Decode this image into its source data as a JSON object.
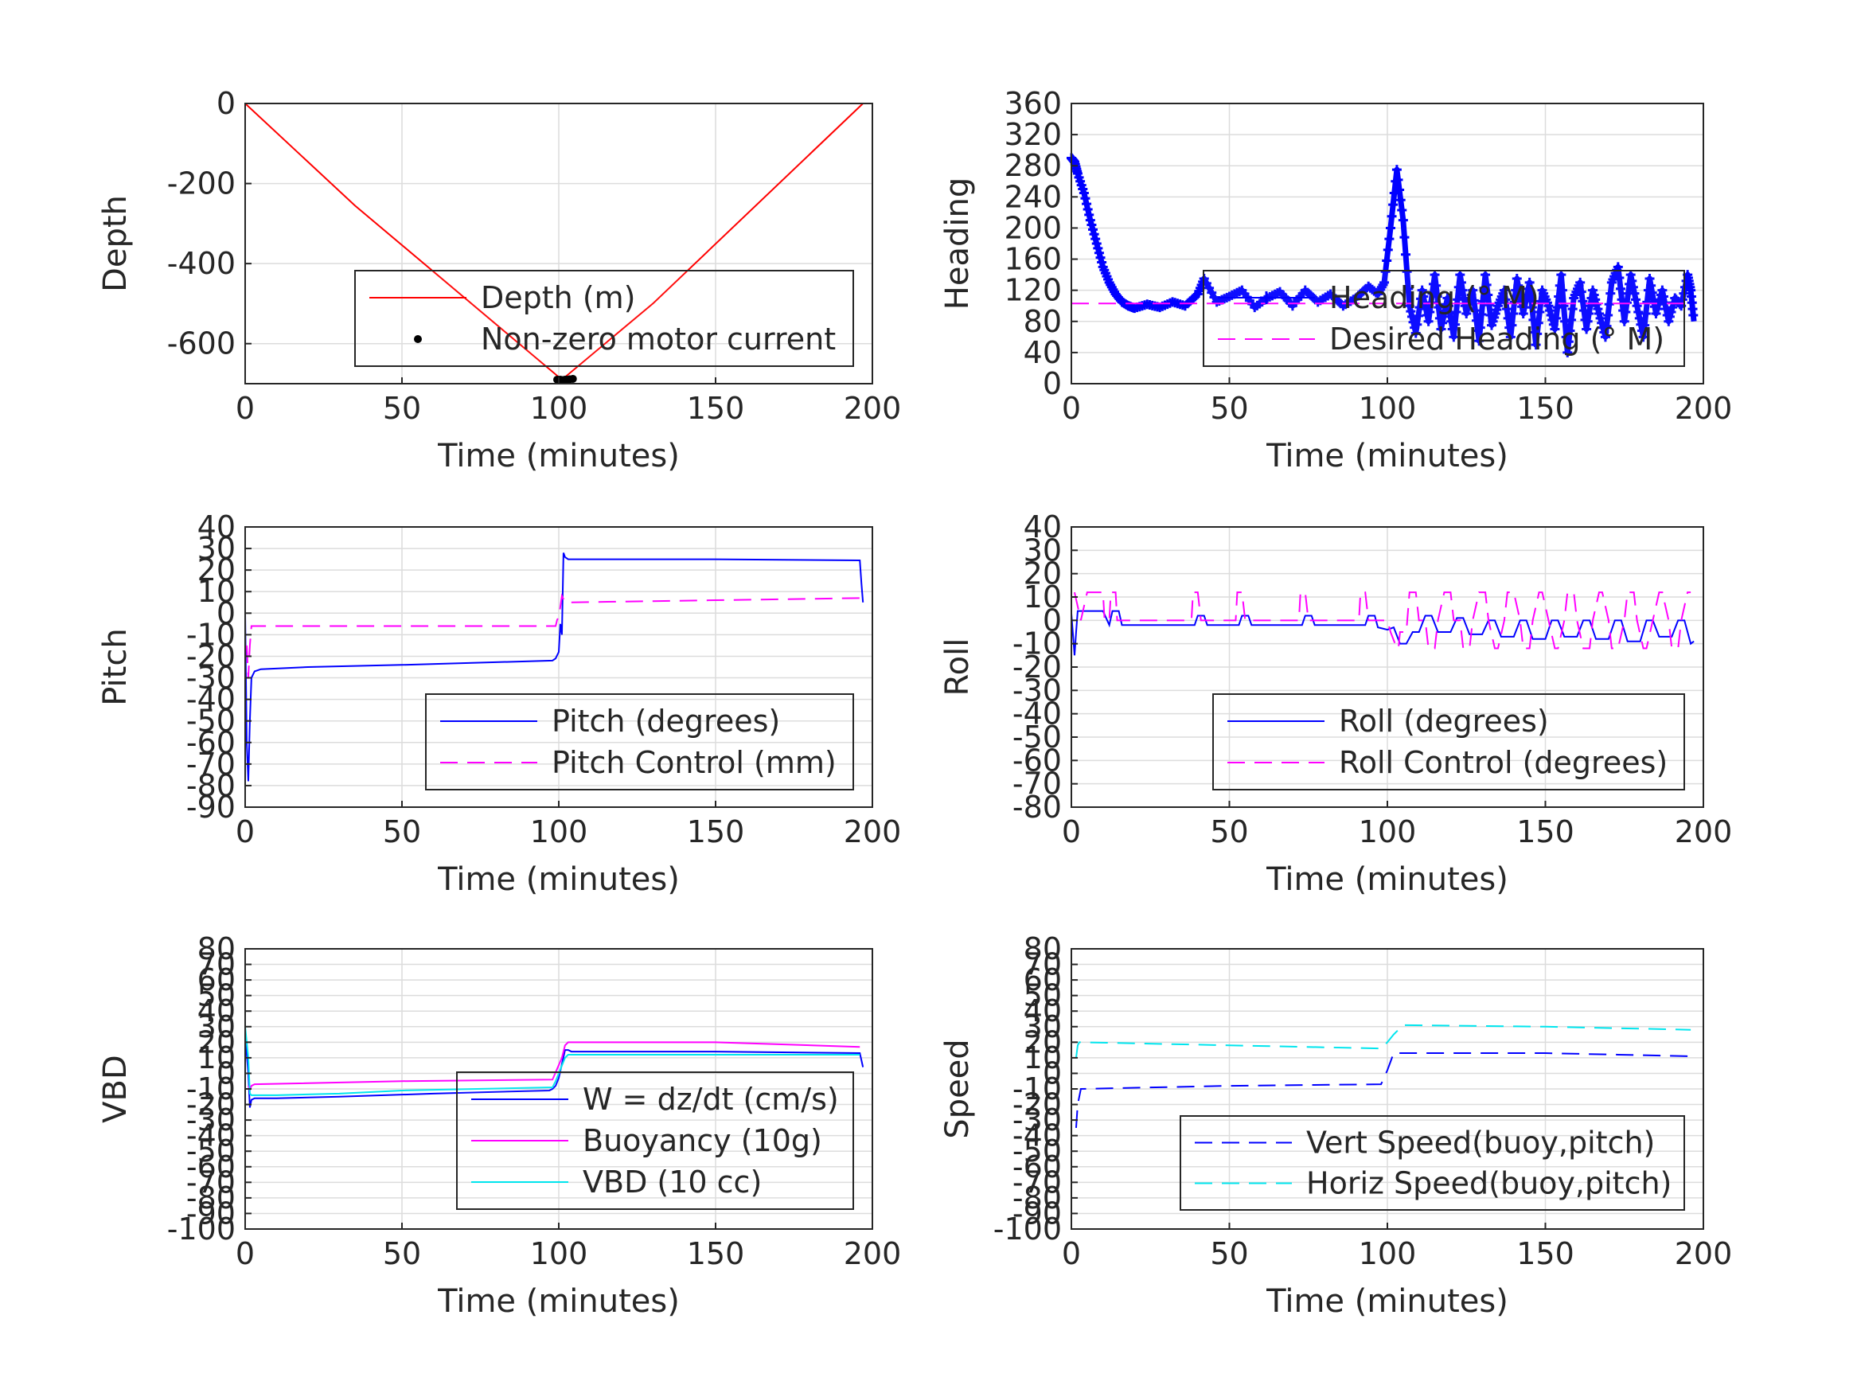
{
  "chart_data": [
    {
      "type": "line",
      "xlabel": "Time (minutes)",
      "ylabel": "Depth",
      "xlim": [
        0,
        200
      ],
      "ylim": [
        -700,
        0
      ],
      "xticks": [
        0,
        50,
        100,
        150,
        200
      ],
      "yticks": [
        0,
        -200,
        -400,
        -600
      ],
      "grid": true,
      "legend_position": "lower-right",
      "series": [
        {
          "name": "Depth (m)",
          "color": "#ff0000",
          "style": "solid",
          "x": [
            0,
            35,
            101,
            130,
            197
          ],
          "y": [
            0,
            -255,
            -690,
            -500,
            0
          ]
        },
        {
          "name": "Non-zero motor current",
          "color": "#000000",
          "style": "dot",
          "x": [
            99.5,
            100.5,
            101,
            101.5,
            102,
            102.5,
            103.5,
            104.5
          ],
          "y": [
            -690,
            -690,
            -691,
            -691,
            -690,
            -690,
            -689,
            -688
          ]
        }
      ]
    },
    {
      "type": "line",
      "xlabel": "Time (minutes)",
      "ylabel": "Heading",
      "xlim": [
        0,
        200
      ],
      "ylim": [
        0,
        360
      ],
      "xticks": [
        0,
        50,
        100,
        150,
        200
      ],
      "yticks": [
        0,
        40,
        80,
        120,
        160,
        200,
        240,
        280,
        320,
        360
      ],
      "grid": true,
      "legend_position": "lower-right",
      "series": [
        {
          "name": "Heading (° M)",
          "color": "#0000ff",
          "style": "plus",
          "x": [
            0,
            1,
            2,
            4,
            6,
            8,
            10,
            12,
            14,
            16,
            18,
            20,
            24,
            28,
            32,
            36,
            40,
            42,
            46,
            50,
            54,
            58,
            62,
            66,
            70,
            74,
            78,
            82,
            86,
            90,
            94,
            97,
            99,
            101,
            103,
            105,
            107,
            109,
            111,
            113,
            115,
            117,
            119,
            121,
            123,
            125,
            127,
            129,
            131,
            133,
            135,
            137,
            139,
            141,
            143,
            145,
            147,
            149,
            151,
            153,
            155,
            157,
            159,
            161,
            163,
            165,
            167,
            169,
            171,
            173,
            175,
            177,
            179,
            181,
            183,
            185,
            187,
            189,
            191,
            193,
            195,
            196,
            197
          ],
          "y": [
            290,
            285,
            270,
            245,
            210,
            180,
            150,
            130,
            115,
            105,
            100,
            97,
            102,
            98,
            105,
            100,
            115,
            135,
            105,
            112,
            120,
            98,
            110,
            118,
            100,
            120,
            105,
            115,
            100,
            110,
            125,
            115,
            130,
            200,
            275,
            210,
            100,
            65,
            120,
            80,
            140,
            70,
            110,
            60,
            140,
            90,
            120,
            55,
            140,
            75,
            100,
            120,
            60,
            135,
            90,
            130,
            50,
            120,
            100,
            70,
            140,
            40,
            110,
            130,
            70,
            120,
            90,
            60,
            130,
            150,
            80,
            140,
            100,
            60,
            135,
            90,
            120,
            80,
            110,
            100,
            140,
            120,
            80
          ]
        },
        {
          "name": "Desired Heading (° M)",
          "color": "#ff00ff",
          "style": "dash",
          "x": [
            0,
            197
          ],
          "y": [
            103,
            103
          ]
        }
      ]
    },
    {
      "type": "line",
      "xlabel": "Time (minutes)",
      "ylabel": "Pitch",
      "xlim": [
        0,
        200
      ],
      "ylim": [
        -90,
        40
      ],
      "xticks": [
        0,
        50,
        100,
        150,
        200
      ],
      "yticks": [
        40,
        30,
        20,
        10,
        0,
        -10,
        -20,
        -30,
        -40,
        -50,
        -60,
        -70,
        -80,
        -90
      ],
      "grid": true,
      "legend_position": "lower-right",
      "series": [
        {
          "name": "Pitch (degrees)",
          "color": "#0000ff",
          "style": "solid",
          "x": [
            0,
            0.5,
            1,
            1.5,
            2,
            3,
            5,
            20,
            50,
            98,
            99,
            100,
            100.5,
            101,
            101.5,
            102,
            103,
            110,
            150,
            196,
            196.5,
            197
          ],
          "y": [
            0,
            -60,
            -78,
            -50,
            -30,
            -27,
            -26,
            -25,
            -24,
            -22,
            -21,
            -18,
            -5,
            -10,
            28,
            26,
            25,
            25,
            25,
            24.5,
            14,
            5
          ]
        },
        {
          "name": "Pitch Control (mm)",
          "color": "#ff00ff",
          "style": "dash",
          "x": [
            0.5,
            1,
            1.5,
            2,
            3,
            99,
            99.5,
            100,
            101,
            102,
            103,
            196,
            197
          ],
          "y": [
            -15,
            -30,
            -15,
            -6,
            -6,
            -6,
            -3,
            -2,
            8,
            5,
            5,
            7,
            7
          ]
        }
      ]
    },
    {
      "type": "line",
      "xlabel": "Time (minutes)",
      "ylabel": "Roll",
      "xlim": [
        0,
        200
      ],
      "ylim": [
        -80,
        40
      ],
      "xticks": [
        0,
        50,
        100,
        150,
        200
      ],
      "yticks": [
        40,
        30,
        20,
        10,
        0,
        -10,
        -20,
        -30,
        -40,
        -50,
        -60,
        -70,
        -80
      ],
      "grid": true,
      "legend_position": "lower-right",
      "series": [
        {
          "name": "Roll (degrees)",
          "color": "#0000ff",
          "style": "solid",
          "x": [
            0,
            1,
            1.5,
            2,
            4,
            10,
            12,
            13,
            15,
            16,
            20,
            39,
            40,
            42,
            43,
            53,
            54,
            56,
            57,
            73,
            74,
            76,
            77,
            93,
            94,
            96,
            97,
            100,
            102,
            104,
            106,
            108,
            110,
            112,
            114,
            116,
            120,
            122,
            124,
            126,
            130,
            132,
            134,
            136,
            140,
            142,
            144,
            146,
            150,
            152,
            154,
            156,
            160,
            162,
            164,
            166,
            170,
            172,
            174,
            176,
            180,
            182,
            184,
            186,
            190,
            192,
            194,
            196,
            197
          ],
          "y": [
            3,
            -15,
            -5,
            4,
            4,
            4,
            -2,
            4,
            4,
            -2,
            -2,
            -2,
            2,
            2,
            -2,
            -2,
            2,
            2,
            -2,
            -2,
            2,
            2,
            -2,
            -2,
            2,
            2,
            -3,
            -4,
            -3,
            -10,
            -10,
            -5,
            -5,
            2,
            2,
            -5,
            -5,
            1,
            1,
            -6,
            -6,
            0,
            0,
            -7,
            -7,
            0,
            0,
            -8,
            -8,
            0,
            0,
            -7,
            -7,
            0,
            0,
            -8,
            -8,
            0,
            0,
            -9,
            -9,
            0,
            0,
            -7,
            -7,
            0,
            0,
            -10,
            -9
          ]
        },
        {
          "name": "Roll Control (degrees)",
          "color": "#ff00ff",
          "style": "dash",
          "x": [
            1,
            3,
            5,
            10,
            10.5,
            12,
            12.5,
            14,
            14.5,
            16,
            17,
            38,
            38.5,
            40,
            41,
            52,
            52.5,
            54,
            55,
            72,
            72.5,
            74,
            75,
            91,
            91.5,
            93,
            94,
            100,
            101,
            103,
            103.5,
            104,
            106,
            107,
            109,
            110,
            112,
            113,
            115,
            116,
            118,
            120,
            121,
            123,
            124,
            126,
            127,
            129,
            131,
            132,
            134,
            135,
            137,
            138,
            140,
            142,
            143,
            145,
            146,
            148,
            149,
            151,
            153,
            154,
            156,
            157,
            159,
            160,
            162,
            164,
            165,
            167,
            168,
            170,
            171,
            173,
            175,
            176,
            178,
            179,
            181,
            182,
            184,
            186,
            187,
            189,
            190,
            192,
            193,
            195,
            196
          ],
          "y": [
            12,
            0,
            12,
            12,
            0,
            0,
            12,
            12,
            0,
            0,
            0,
            0,
            12,
            12,
            0,
            0,
            12,
            12,
            0,
            0,
            12,
            12,
            0,
            0,
            12,
            12,
            0,
            0,
            -5,
            -12,
            -12,
            -5,
            -5,
            12,
            12,
            0,
            0,
            -12,
            -12,
            0,
            12,
            12,
            0,
            0,
            -12,
            -12,
            0,
            12,
            12,
            0,
            -12,
            -12,
            0,
            12,
            12,
            0,
            -12,
            -12,
            0,
            12,
            12,
            0,
            -12,
            -12,
            0,
            12,
            12,
            0,
            -12,
            -12,
            0,
            12,
            12,
            0,
            -12,
            -12,
            0,
            12,
            12,
            0,
            -12,
            -12,
            0,
            12,
            12,
            0,
            -12,
            -12,
            0,
            12,
            12
          ]
        }
      ]
    },
    {
      "type": "line",
      "xlabel": "Time (minutes)",
      "ylabel": "VBD",
      "xlim": [
        0,
        200
      ],
      "ylim": [
        -100,
        80
      ],
      "xticks": [
        0,
        50,
        100,
        150,
        200
      ],
      "yticks": [
        80,
        70,
        60,
        50,
        40,
        30,
        20,
        10,
        0,
        -10,
        -20,
        -30,
        -40,
        -50,
        -60,
        -70,
        -80,
        -90,
        -100
      ],
      "grid": true,
      "legend_position": "lower-right",
      "series": [
        {
          "name": "W = dz/dt (cm/s)",
          "color": "#0000ff",
          "style": "solid",
          "x": [
            0,
            1,
            1.5,
            2,
            3,
            10,
            30,
            60,
            97,
            98,
            99,
            100,
            102,
            103,
            104,
            110,
            150,
            196,
            197
          ],
          "y": [
            25,
            0,
            -22,
            -17,
            -16,
            -16,
            -15,
            -13,
            -11,
            -10,
            -8,
            -3,
            15,
            15,
            14,
            14,
            14,
            13,
            4
          ]
        },
        {
          "name": "Buoyancy (10g)",
          "color": "#ff00ff",
          "style": "solid",
          "x": [
            1,
            1.5,
            2,
            3,
            50,
            98,
            101,
            102,
            103,
            150,
            196
          ],
          "y": [
            -8,
            -11,
            -8,
            -7,
            -5,
            -4,
            10,
            18,
            20,
            20,
            17
          ]
        },
        {
          "name": "VBD (10 cc)",
          "color": "#00e5ee",
          "style": "solid",
          "x": [
            0,
            1,
            1.5,
            2,
            3,
            10,
            30,
            50,
            98,
            99,
            100,
            101,
            102,
            103,
            110,
            150,
            196
          ],
          "y": [
            30,
            10,
            -13,
            -14,
            -14,
            -14,
            -13,
            -11,
            -9,
            -5,
            0,
            5,
            10,
            12,
            12,
            12,
            12
          ]
        }
      ]
    },
    {
      "type": "line",
      "xlabel": "Time (minutes)",
      "ylabel": "Speed",
      "xlim": [
        0,
        200
      ],
      "ylim": [
        -100,
        80
      ],
      "xticks": [
        0,
        50,
        100,
        150,
        200
      ],
      "yticks": [
        80,
        70,
        60,
        50,
        40,
        30,
        20,
        10,
        0,
        -10,
        -20,
        -30,
        -40,
        -50,
        -60,
        -70,
        -80,
        -90,
        -100
      ],
      "grid": true,
      "legend_position": "lower-right",
      "series": [
        {
          "name": "Vert Speed(buoy,pitch)",
          "color": "#0000ff",
          "style": "dash",
          "x": [
            1.5,
            2,
            2.5,
            3,
            50,
            98,
            100,
            102,
            110,
            150,
            196
          ],
          "y": [
            -35,
            -20,
            -15,
            -10,
            -8,
            -7,
            2,
            13,
            13,
            13,
            11
          ]
        },
        {
          "name": "Horiz Speed(buoy,pitch)",
          "color": "#00e5ee",
          "style": "dash",
          "x": [
            1.5,
            2,
            2.5,
            3,
            50,
            98,
            100,
            102,
            105,
            150,
            196
          ],
          "y": [
            10,
            18,
            20,
            20,
            18,
            16,
            20,
            25,
            31,
            30,
            28
          ]
        }
      ]
    }
  ]
}
